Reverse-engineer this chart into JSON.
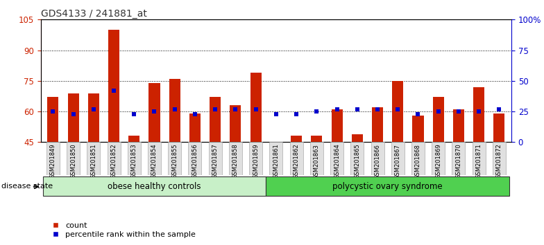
{
  "title": "GDS4133 / 241881_at",
  "samples": [
    "GSM201849",
    "GSM201850",
    "GSM201851",
    "GSM201852",
    "GSM201853",
    "GSM201854",
    "GSM201855",
    "GSM201856",
    "GSM201857",
    "GSM201858",
    "GSM201859",
    "GSM201861",
    "GSM201862",
    "GSM201863",
    "GSM201864",
    "GSM201865",
    "GSM201866",
    "GSM201867",
    "GSM201868",
    "GSM201869",
    "GSM201870",
    "GSM201871",
    "GSM201872"
  ],
  "counts": [
    67,
    69,
    69,
    100,
    48,
    74,
    76,
    59,
    67,
    63,
    79,
    45,
    48,
    48,
    61,
    49,
    62,
    75,
    58,
    67,
    61,
    72,
    59
  ],
  "percentiles": [
    25,
    23,
    27,
    42,
    23,
    25,
    27,
    23,
    27,
    27,
    27,
    23,
    23,
    25,
    27,
    27,
    27,
    27,
    23,
    25,
    25,
    25,
    27
  ],
  "ylim_left": [
    45,
    105
  ],
  "ylim_right": [
    0,
    100
  ],
  "yticks_left": [
    45,
    60,
    75,
    90,
    105
  ],
  "yticks_right": [
    0,
    25,
    50,
    75,
    100
  ],
  "yticklabels_right": [
    "0",
    "25",
    "50",
    "75",
    "100%"
  ],
  "bar_color": "#CC2200",
  "percentile_color": "#0000CC",
  "bar_width": 0.55,
  "grid_color": "black",
  "legend_count_label": "count",
  "legend_percentile_label": "percentile rank within the sample",
  "disease_state_label": "disease state",
  "left_axis_color": "#CC2200",
  "right_axis_color": "#0000CC",
  "group_items": [
    {
      "label": "obese healthy controls",
      "start": 0,
      "end": 11,
      "color": "#c8f0c8"
    },
    {
      "label": "polycystic ovary syndrome",
      "start": 11,
      "end": 23,
      "color": "#50d050"
    }
  ]
}
